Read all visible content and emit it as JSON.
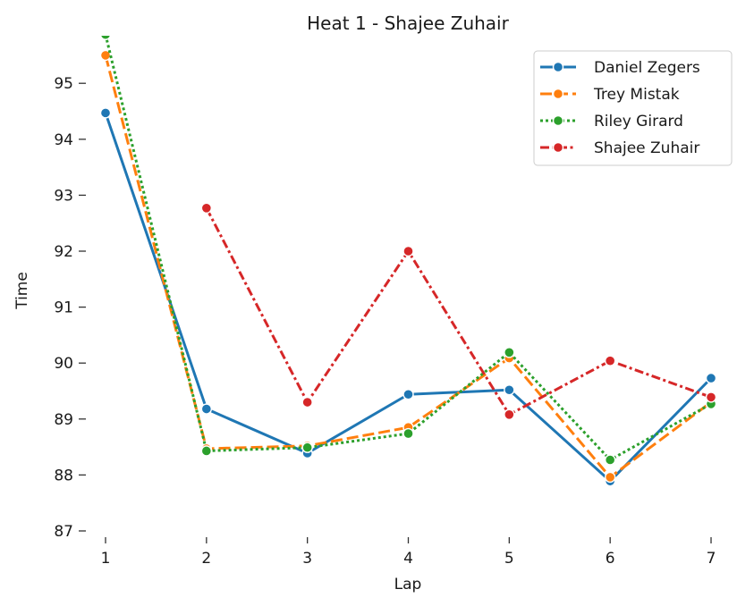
{
  "chart_data": {
    "type": "line",
    "title": "Heat 1 - Shajee Zuhair",
    "xlabel": "Lap",
    "ylabel": "Time",
    "x": [
      1,
      2,
      3,
      4,
      5,
      6,
      7
    ],
    "xlim": [
      0.7,
      7.3
    ],
    "ylim": [
      87,
      95.85
    ],
    "yticks": [
      87,
      88,
      89,
      90,
      91,
      92,
      93,
      94,
      95
    ],
    "grid": false,
    "legend_position": "top-right",
    "series": [
      {
        "name": "Daniel Zegers",
        "color": "#1f77b4",
        "dash": "solid",
        "x": [
          1,
          2,
          3,
          4,
          5,
          6,
          7
        ],
        "values": [
          94.47,
          89.18,
          88.39,
          89.44,
          89.52,
          87.89,
          89.73
        ]
      },
      {
        "name": "Trey Mistak",
        "color": "#ff7f0e",
        "dash": "dashed",
        "x": [
          1,
          2,
          3,
          4,
          5,
          6,
          7
        ],
        "values": [
          95.5,
          88.47,
          88.52,
          88.85,
          90.09,
          87.96,
          89.3
        ]
      },
      {
        "name": "Riley Girard",
        "color": "#2ca02c",
        "dash": "dotted",
        "x": [
          1,
          2,
          3,
          4,
          5,
          6,
          7
        ],
        "values": [
          95.87,
          88.43,
          88.49,
          88.74,
          90.19,
          88.27,
          89.27
        ]
      },
      {
        "name": "Shajee Zuhair",
        "color": "#d62728",
        "dash": "dashdot",
        "x": [
          2,
          3,
          4,
          5,
          6,
          7
        ],
        "values": [
          92.77,
          89.3,
          92.0,
          89.08,
          90.04,
          89.39
        ]
      }
    ]
  }
}
